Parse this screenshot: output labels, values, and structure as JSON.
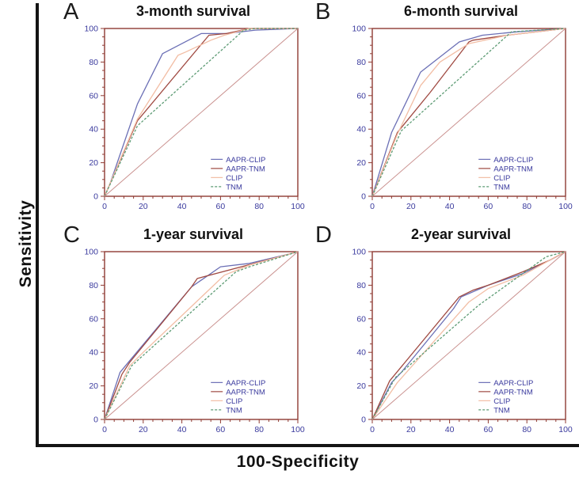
{
  "figure": {
    "x_axis_label": "100-Specificity",
    "y_axis_label": "Sensitivity"
  },
  "colors": {
    "aapr_clip": "#6b6fb5",
    "aapr_tnm": "#a04a42",
    "clip": "#f2bda4",
    "tnm": "#5d9b74",
    "reference": "#c9908e",
    "frame": "#8f3a32",
    "tick_label": "#3b3b9e",
    "legend_text": "#3b3b9e"
  },
  "chart_data": [
    {
      "type": "line",
      "panel": "A",
      "title": "3-month survival",
      "xlabel": "100-Specificity",
      "ylabel": "Sensitivity",
      "xlim": [
        0,
        100
      ],
      "ylim": [
        0,
        100
      ],
      "x_ticks": [
        0,
        20,
        40,
        60,
        80,
        100
      ],
      "y_ticks": [
        0,
        20,
        40,
        60,
        80,
        100
      ],
      "minor_tick_step": 5,
      "grid": false,
      "legend_position": "lower right",
      "series": [
        {
          "name": "AAPR-CLIP",
          "color_key": "aapr_clip",
          "dash": false,
          "points": [
            [
              0,
              0
            ],
            [
              3,
              8
            ],
            [
              17,
              55
            ],
            [
              30,
              85
            ],
            [
              50,
              97
            ],
            [
              63,
              97
            ],
            [
              78,
              99
            ],
            [
              100,
              100
            ]
          ]
        },
        {
          "name": "AAPR-TNM",
          "color_key": "aapr_tnm",
          "dash": false,
          "points": [
            [
              0,
              0
            ],
            [
              17,
              45
            ],
            [
              54,
              96
            ],
            [
              63,
              97
            ],
            [
              75,
              100
            ],
            [
              100,
              100
            ]
          ]
        },
        {
          "name": "CLIP",
          "color_key": "clip",
          "dash": false,
          "points": [
            [
              0,
              0
            ],
            [
              17,
              46
            ],
            [
              38,
              84
            ],
            [
              42,
              86
            ],
            [
              55,
              93
            ],
            [
              62,
              96
            ],
            [
              75,
              100
            ],
            [
              100,
              100
            ]
          ]
        },
        {
          "name": "TNM",
          "color_key": "tnm",
          "dash": true,
          "points": [
            [
              0,
              0
            ],
            [
              17,
              42
            ],
            [
              72,
              99
            ],
            [
              78,
              100
            ],
            [
              100,
              100
            ]
          ]
        },
        {
          "name": "chance line",
          "color_key": "reference",
          "dash": false,
          "legend": false,
          "reference": true,
          "points": [
            [
              0,
              0
            ],
            [
              100,
              100
            ]
          ]
        }
      ]
    },
    {
      "type": "line",
      "panel": "B",
      "title": "6-month survival",
      "xlabel": "100-Specificity",
      "ylabel": "Sensitivity",
      "xlim": [
        0,
        100
      ],
      "ylim": [
        0,
        100
      ],
      "x_ticks": [
        0,
        20,
        40,
        60,
        80,
        100
      ],
      "y_ticks": [
        0,
        20,
        40,
        60,
        80,
        100
      ],
      "minor_tick_step": 5,
      "grid": false,
      "legend_position": "lower right",
      "series": [
        {
          "name": "AAPR-CLIP",
          "color_key": "aapr_clip",
          "dash": false,
          "points": [
            [
              0,
              0
            ],
            [
              10,
              38
            ],
            [
              25,
              74
            ],
            [
              45,
              92
            ],
            [
              57,
              96
            ],
            [
              75,
              98
            ],
            [
              100,
              100
            ]
          ]
        },
        {
          "name": "AAPR-TNM",
          "color_key": "aapr_tnm",
          "dash": false,
          "points": [
            [
              0,
              0
            ],
            [
              13,
              38
            ],
            [
              30,
              62
            ],
            [
              50,
              92
            ],
            [
              52,
              93
            ],
            [
              70,
              96
            ],
            [
              100,
              100
            ]
          ]
        },
        {
          "name": "CLIP",
          "color_key": "clip",
          "dash": false,
          "points": [
            [
              0,
              0
            ],
            [
              13,
              37
            ],
            [
              25,
              66
            ],
            [
              35,
              80
            ],
            [
              50,
              91
            ],
            [
              70,
              96
            ],
            [
              100,
              100
            ]
          ]
        },
        {
          "name": "TNM",
          "color_key": "tnm",
          "dash": true,
          "points": [
            [
              0,
              0
            ],
            [
              15,
              39
            ],
            [
              72,
              98
            ],
            [
              100,
              100
            ]
          ]
        },
        {
          "name": "chance line",
          "color_key": "reference",
          "dash": false,
          "legend": false,
          "reference": true,
          "points": [
            [
              0,
              0
            ],
            [
              100,
              100
            ]
          ]
        }
      ]
    },
    {
      "type": "line",
      "panel": "C",
      "title": "1-year survival",
      "xlabel": "100-Specificity",
      "ylabel": "Sensitivity",
      "xlim": [
        0,
        100
      ],
      "ylim": [
        0,
        100
      ],
      "x_ticks": [
        0,
        20,
        40,
        60,
        80,
        100
      ],
      "y_ticks": [
        0,
        20,
        40,
        60,
        80,
        100
      ],
      "minor_tick_step": 5,
      "grid": false,
      "legend_position": "lower right",
      "series": [
        {
          "name": "AAPR-CLIP",
          "color_key": "aapr_clip",
          "dash": false,
          "points": [
            [
              0,
              0
            ],
            [
              8,
              28
            ],
            [
              13,
              35
            ],
            [
              45,
              79
            ],
            [
              60,
              91
            ],
            [
              75,
              93
            ],
            [
              97,
              99
            ],
            [
              100,
              100
            ]
          ]
        },
        {
          "name": "AAPR-TNM",
          "color_key": "aapr_tnm",
          "dash": false,
          "points": [
            [
              0,
              0
            ],
            [
              9,
              27
            ],
            [
              13,
              34
            ],
            [
              45,
              79
            ],
            [
              48,
              84
            ],
            [
              97,
              99
            ],
            [
              100,
              100
            ]
          ]
        },
        {
          "name": "CLIP",
          "color_key": "clip",
          "dash": false,
          "points": [
            [
              0,
              0
            ],
            [
              13,
              32
            ],
            [
              20,
              40
            ],
            [
              62,
              86
            ],
            [
              75,
              92
            ],
            [
              100,
              100
            ]
          ]
        },
        {
          "name": "TNM",
          "color_key": "tnm",
          "dash": true,
          "points": [
            [
              0,
              0
            ],
            [
              14,
              32
            ],
            [
              68,
              88
            ],
            [
              75,
              91
            ],
            [
              100,
              100
            ]
          ]
        },
        {
          "name": "chance line",
          "color_key": "reference",
          "dash": false,
          "legend": false,
          "reference": true,
          "points": [
            [
              0,
              0
            ],
            [
              100,
              100
            ]
          ]
        }
      ]
    },
    {
      "type": "line",
      "panel": "D",
      "title": "2-year survival",
      "xlabel": "100-Specificity",
      "ylabel": "Sensitivity",
      "xlim": [
        0,
        100
      ],
      "ylim": [
        0,
        100
      ],
      "x_ticks": [
        0,
        20,
        40,
        60,
        80,
        100
      ],
      "y_ticks": [
        0,
        20,
        40,
        60,
        80,
        100
      ],
      "minor_tick_step": 5,
      "grid": false,
      "legend_position": "lower right",
      "series": [
        {
          "name": "AAPR-CLIP",
          "color_key": "aapr_clip",
          "dash": false,
          "points": [
            [
              0,
              0
            ],
            [
              10,
              22
            ],
            [
              15,
              28
            ],
            [
              42,
              66
            ],
            [
              46,
              73
            ],
            [
              60,
              80
            ],
            [
              78,
              87
            ],
            [
              92,
              95
            ],
            [
              100,
              100
            ]
          ]
        },
        {
          "name": "AAPR-TNM",
          "color_key": "aapr_tnm",
          "dash": false,
          "points": [
            [
              0,
              0
            ],
            [
              9,
              23
            ],
            [
              45,
              73
            ],
            [
              52,
              77
            ],
            [
              60,
              80
            ],
            [
              78,
              88
            ],
            [
              92,
              95
            ],
            [
              100,
              100
            ]
          ]
        },
        {
          "name": "CLIP",
          "color_key": "clip",
          "dash": false,
          "points": [
            [
              0,
              0
            ],
            [
              13,
              22
            ],
            [
              50,
              70
            ],
            [
              60,
              78
            ],
            [
              78,
              86
            ],
            [
              95,
              97
            ],
            [
              100,
              100
            ]
          ]
        },
        {
          "name": "TNM",
          "color_key": "tnm",
          "dash": true,
          "points": [
            [
              0,
              0
            ],
            [
              12,
              25
            ],
            [
              55,
              68
            ],
            [
              90,
              97
            ],
            [
              100,
              100
            ]
          ]
        },
        {
          "name": "chance line",
          "color_key": "reference",
          "dash": false,
          "legend": false,
          "reference": true,
          "points": [
            [
              0,
              0
            ],
            [
              100,
              100
            ]
          ]
        }
      ]
    }
  ]
}
